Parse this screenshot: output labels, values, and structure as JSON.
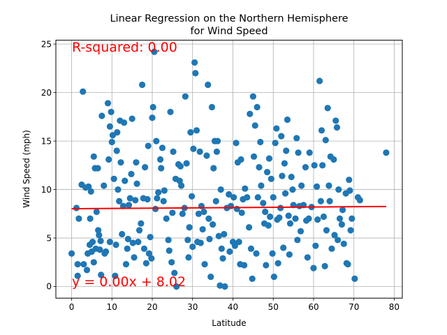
{
  "chart_data": {
    "type": "scatter",
    "title_line1": "Linear Regression on the Northern Hemisphere",
    "title_line2": "for Wind Speed",
    "xlabel": "Latitude",
    "ylabel": "Wind Speed (mph)",
    "xlim": [
      -3.9,
      82.0
    ],
    "ylim": [
      -1.2,
      25.4
    ],
    "xticks": [
      0,
      10,
      20,
      30,
      40,
      50,
      60,
      70,
      80
    ],
    "yticks": [
      0,
      5,
      10,
      15,
      20,
      25
    ],
    "grid": true,
    "point_color": "#1f77b4",
    "line_color": "#ff0000",
    "annotations": {
      "r_squared": "R-squared: 0.00",
      "equation": "y = 0.00x + 8.02"
    },
    "regression": {
      "slope": 0.003,
      "intercept": 8.02,
      "x_start": 0,
      "x_end": 78
    },
    "points": [
      [
        0.0,
        3.4
      ],
      [
        1.2,
        8.1
      ],
      [
        1.5,
        2.3
      ],
      [
        1.5,
        1.1
      ],
      [
        1.8,
        7.0
      ],
      [
        2.5,
        10.5
      ],
      [
        2.8,
        20.1
      ],
      [
        3.0,
        2.3
      ],
      [
        3.5,
        10.2
      ],
      [
        3.8,
        1.7
      ],
      [
        4.0,
        3.4
      ],
      [
        4.2,
        10.3
      ],
      [
        4.5,
        4.3
      ],
      [
        4.6,
        7.0
      ],
      [
        4.8,
        9.8
      ],
      [
        5.0,
        3.6
      ],
      [
        5.2,
        4.6
      ],
      [
        5.5,
        2.5
      ],
      [
        5.5,
        13.4
      ],
      [
        5.8,
        12.2
      ],
      [
        6.0,
        3.9
      ],
      [
        6.2,
        7.7
      ],
      [
        6.5,
        12.2
      ],
      [
        6.6,
        5.8
      ],
      [
        6.8,
        5.3
      ],
      [
        7.0,
        3.8
      ],
      [
        7.2,
        4.7
      ],
      [
        7.3,
        1.2
      ],
      [
        7.5,
        17.6
      ],
      [
        8.0,
        10.4
      ],
      [
        8.2,
        3.4
      ],
      [
        8.5,
        3.6
      ],
      [
        9.0,
        18.9
      ],
      [
        9.2,
        13.1
      ],
      [
        9.5,
        16.5
      ],
      [
        9.5,
        4.6
      ],
      [
        9.8,
        18.0
      ],
      [
        10.0,
        14.9
      ],
      [
        10.2,
        15.6
      ],
      [
        10.5,
        11.1
      ],
      [
        10.8,
        1.1
      ],
      [
        11.0,
        4.3
      ],
      [
        11.2,
        14.0
      ],
      [
        11.3,
        15.9
      ],
      [
        11.5,
        10.0
      ],
      [
        11.8,
        8.8
      ],
      [
        12.0,
        17.1
      ],
      [
        12.2,
        12.8
      ],
      [
        12.5,
        5.4
      ],
      [
        12.8,
        8.3
      ],
      [
        13.0,
        16.9
      ],
      [
        13.2,
        10.9
      ],
      [
        13.5,
        2.3
      ],
      [
        13.8,
        3.9
      ],
      [
        14.0,
        4.9
      ],
      [
        14.2,
        8.4
      ],
      [
        14.5,
        9.1
      ],
      [
        14.8,
        11.6
      ],
      [
        15.0,
        17.3
      ],
      [
        15.2,
        4.5
      ],
      [
        15.5,
        3.0
      ],
      [
        15.8,
        8.9
      ],
      [
        16.0,
        12.8
      ],
      [
        16.2,
        10.6
      ],
      [
        16.5,
        4.6
      ],
      [
        16.8,
        5.8
      ],
      [
        17.2,
        6.5
      ],
      [
        17.5,
        20.8
      ],
      [
        17.8,
        9.1
      ],
      [
        18.0,
        3.9
      ],
      [
        18.2,
        12.3
      ],
      [
        18.5,
        2.4
      ],
      [
        18.8,
        9.0
      ],
      [
        19.0,
        14.5
      ],
      [
        19.2,
        3.4
      ],
      [
        19.5,
        5.1
      ],
      [
        19.8,
        2.9
      ],
      [
        20.0,
        17.4
      ],
      [
        20.2,
        18.5
      ],
      [
        20.5,
        24.2
      ],
      [
        20.8,
        8.0
      ],
      [
        21.0,
        15.0
      ],
      [
        21.2,
        9.1
      ],
      [
        21.5,
        9.7
      ],
      [
        22.0,
        13.1
      ],
      [
        22.2,
        12.2
      ],
      [
        22.5,
        14.3
      ],
      [
        22.8,
        8.8
      ],
      [
        23.0,
        9.9
      ],
      [
        23.5,
        7.0
      ],
      [
        24.0,
        4.8
      ],
      [
        24.2,
        3.7
      ],
      [
        24.5,
        18.0
      ],
      [
        24.8,
        2.5
      ],
      [
        25.0,
        7.6
      ],
      [
        25.2,
        13.9
      ],
      [
        25.5,
        1.4
      ],
      [
        25.8,
        11.1
      ],
      [
        26.0,
        0.0
      ],
      [
        26.5,
        12.6
      ],
      [
        26.8,
        10.9
      ],
      [
        27.0,
        12.4
      ],
      [
        27.2,
        10.4
      ],
      [
        27.5,
        7.5
      ],
      [
        28.0,
        8.1
      ],
      [
        28.2,
        19.6
      ],
      [
        28.5,
        12.7
      ],
      [
        28.8,
        4.8
      ],
      [
        29.0,
        3.0
      ],
      [
        29.2,
        6.1
      ],
      [
        29.5,
        15.9
      ],
      [
        29.8,
        9.3
      ],
      [
        30.0,
        4.1
      ],
      [
        30.2,
        14.2
      ],
      [
        30.5,
        23.1
      ],
      [
        30.7,
        22.0
      ],
      [
        31.0,
        16.1
      ],
      [
        31.2,
        4.6
      ],
      [
        31.5,
        7.5
      ],
      [
        31.8,
        13.9
      ],
      [
        32.0,
        4.5
      ],
      [
        32.2,
        8.3
      ],
      [
        32.5,
        5.9
      ],
      [
        32.8,
        7.7
      ],
      [
        33.0,
        2.3
      ],
      [
        33.5,
        13.5
      ],
      [
        33.8,
        20.8
      ],
      [
        34.0,
        7.0
      ],
      [
        34.2,
        4.9
      ],
      [
        34.5,
        1.0
      ],
      [
        34.8,
        18.5
      ],
      [
        35.0,
        6.4
      ],
      [
        35.2,
        12.2
      ],
      [
        35.5,
        15.0
      ],
      [
        35.8,
        8.8
      ],
      [
        36.0,
        13.9
      ],
      [
        36.2,
        15.0
      ],
      [
        36.5,
        5.2
      ],
      [
        36.8,
        0.1
      ],
      [
        37.0,
        10.0
      ],
      [
        37.2,
        3.9
      ],
      [
        37.5,
        2.9
      ],
      [
        37.8,
        5.4
      ],
      [
        38.0,
        0.0
      ],
      [
        38.5,
        8.1
      ],
      [
        39.0,
        9.5
      ],
      [
        39.2,
        3.6
      ],
      [
        39.5,
        8.3
      ],
      [
        40.0,
        4.6
      ],
      [
        40.2,
        9.2
      ],
      [
        40.5,
        4.2
      ],
      [
        40.8,
        14.8
      ],
      [
        41.0,
        8.0
      ],
      [
        41.2,
        12.8
      ],
      [
        41.5,
        4.6
      ],
      [
        41.8,
        2.3
      ],
      [
        42.0,
        13.1
      ],
      [
        42.2,
        7.6
      ],
      [
        42.5,
        9.0
      ],
      [
        42.8,
        2.2
      ],
      [
        43.0,
        10.1
      ],
      [
        43.5,
        9.2
      ],
      [
        44.0,
        6.1
      ],
      [
        44.2,
        17.8
      ],
      [
        44.5,
        3.9
      ],
      [
        44.8,
        0.8
      ],
      [
        45.0,
        19.6
      ],
      [
        45.2,
        13.4
      ],
      [
        45.5,
        16.6
      ],
      [
        45.8,
        3.4
      ],
      [
        46.0,
        18.5
      ],
      [
        46.2,
        9.2
      ],
      [
        46.5,
        12.3
      ],
      [
        46.8,
        14.9
      ],
      [
        47.0,
        10.4
      ],
      [
        47.5,
        8.6
      ],
      [
        47.8,
        6.5
      ],
      [
        48.0,
        7.7
      ],
      [
        48.2,
        2.2
      ],
      [
        48.5,
        11.8
      ],
      [
        48.8,
        6.3
      ],
      [
        49.0,
        13.2
      ],
      [
        49.2,
        7.2
      ],
      [
        49.5,
        11.1
      ],
      [
        49.8,
        3.4
      ],
      [
        50.0,
        9.2
      ],
      [
        50.2,
        1.0
      ],
      [
        50.5,
        14.8
      ],
      [
        50.8,
        16.3
      ],
      [
        51.0,
        6.9
      ],
      [
        51.2,
        2.4
      ],
      [
        51.5,
        7.1
      ],
      [
        51.8,
        8.1
      ],
      [
        52.0,
        15.5
      ],
      [
        52.2,
        11.4
      ],
      [
        52.5,
        4.0
      ],
      [
        52.8,
        12.7
      ],
      [
        53.0,
        9.6
      ],
      [
        53.2,
        14.0
      ],
      [
        53.5,
        17.2
      ],
      [
        53.8,
        7.3
      ],
      [
        54.0,
        3.3
      ],
      [
        54.2,
        6.5
      ],
      [
        54.5,
        11.3
      ],
      [
        54.8,
        10.0
      ],
      [
        55.0,
        8.4
      ],
      [
        55.5,
        7.0
      ],
      [
        55.8,
        15.3
      ],
      [
        56.0,
        4.8
      ],
      [
        56.2,
        13.8
      ],
      [
        56.5,
        8.3
      ],
      [
        56.8,
        5.7
      ],
      [
        57.0,
        10.4
      ],
      [
        57.5,
        8.4
      ],
      [
        58.0,
        12.3
      ],
      [
        58.2,
        6.8
      ],
      [
        58.5,
        3.0
      ],
      [
        58.8,
        7.0
      ],
      [
        59.0,
        13.8
      ],
      [
        59.5,
        8.2
      ],
      [
        60.0,
        1.9
      ],
      [
        60.2,
        12.5
      ],
      [
        60.5,
        4.2
      ],
      [
        60.8,
        10.3
      ],
      [
        61.0,
        6.9
      ],
      [
        61.5,
        21.2
      ],
      [
        61.8,
        8.8
      ],
      [
        62.0,
        16.1
      ],
      [
        62.2,
        12.5
      ],
      [
        62.5,
        7.2
      ],
      [
        62.8,
        2.1
      ],
      [
        63.0,
        15.1
      ],
      [
        63.2,
        5.8
      ],
      [
        63.5,
        18.4
      ],
      [
        63.8,
        10.4
      ],
      [
        64.0,
        8.8
      ],
      [
        64.2,
        13.4
      ],
      [
        64.5,
        3.9
      ],
      [
        65.0,
        13.1
      ],
      [
        65.2,
        5.3
      ],
      [
        65.5,
        17.1
      ],
      [
        65.8,
        16.4
      ],
      [
        66.0,
        4.8
      ],
      [
        66.2,
        10.0
      ],
      [
        66.5,
        7.0
      ],
      [
        67.0,
        6.4
      ],
      [
        67.2,
        7.9
      ],
      [
        67.5,
        4.4
      ],
      [
        68.0,
        9.6
      ],
      [
        68.2,
        2.4
      ],
      [
        68.5,
        2.3
      ],
      [
        68.8,
        11.0
      ],
      [
        69.0,
        9.9
      ],
      [
        69.2,
        5.8
      ],
      [
        69.5,
        7.0
      ],
      [
        70.2,
        0.8
      ],
      [
        71.0,
        9.2
      ],
      [
        71.5,
        8.9
      ],
      [
        78.0,
        13.8
      ]
    ]
  }
}
